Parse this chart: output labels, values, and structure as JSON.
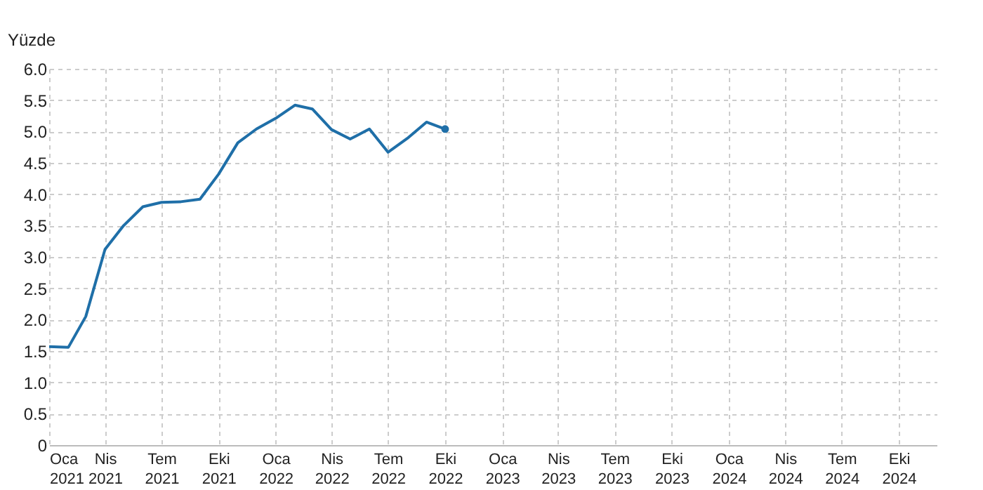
{
  "chart_data": {
    "type": "line",
    "ylabel": "Yüzde",
    "x": [
      "2021-01",
      "2021-02",
      "2021-03",
      "2021-04",
      "2021-05",
      "2021-06",
      "2021-07",
      "2021-08",
      "2021-09",
      "2021-10",
      "2021-11",
      "2021-12",
      "2022-01",
      "2022-02",
      "2022-03",
      "2022-04",
      "2022-05",
      "2022-06",
      "2022-07",
      "2022-08",
      "2022-09",
      "2022-10"
    ],
    "series": [
      {
        "color": "#1f6fa8",
        "values": [
          1.57,
          1.56,
          2.05,
          3.12,
          3.5,
          3.8,
          3.87,
          3.88,
          3.92,
          4.32,
          4.82,
          5.04,
          5.21,
          5.42,
          5.36,
          5.03,
          4.88,
          5.04,
          4.67,
          4.89,
          5.15,
          5.04
        ]
      },
      {
        "type": "scatter",
        "color": "#1f6fa8",
        "marker": "circle",
        "x": [
          "2022-10"
        ],
        "values": [
          5.04
        ]
      }
    ],
    "xlim": [
      "2021-01",
      "2024-12"
    ],
    "xticks": [
      {
        "value": "2021-01",
        "label": "Oca\n2021"
      },
      {
        "value": "2021-04",
        "label": "Nis\n2021"
      },
      {
        "value": "2021-07",
        "label": "Tem\n2021"
      },
      {
        "value": "2021-10",
        "label": "Eki\n2021"
      },
      {
        "value": "2022-01",
        "label": "Oca\n2022"
      },
      {
        "value": "2022-04",
        "label": "Nis\n2022"
      },
      {
        "value": "2022-07",
        "label": "Tem\n2022"
      },
      {
        "value": "2022-10",
        "label": "Eki\n2022"
      },
      {
        "value": "2023-01",
        "label": "Oca\n2023"
      },
      {
        "value": "2023-04",
        "label": "Nis\n2023"
      },
      {
        "value": "2023-07",
        "label": "Tem\n2023"
      },
      {
        "value": "2023-10",
        "label": "Eki\n2023"
      },
      {
        "value": "2024-01",
        "label": "Oca\n2024"
      },
      {
        "value": "2024-04",
        "label": "Nis\n2024"
      },
      {
        "value": "2024-07",
        "label": "Tem\n2024"
      },
      {
        "value": "2024-10",
        "label": "Eki\n2024"
      }
    ],
    "ylim": [
      0,
      6
    ],
    "yticks": [
      0,
      0.5,
      {
        "value": 1,
        "label": "1.0"
      },
      1.5,
      {
        "value": 2,
        "label": "2.0"
      },
      2.5,
      {
        "value": 3,
        "label": "3.0"
      },
      3.5,
      {
        "value": 4,
        "label": "4.0"
      },
      4.5,
      {
        "value": 5,
        "label": "5.0"
      },
      5.5,
      {
        "value": 6,
        "label": "6.0"
      }
    ],
    "grid": true,
    "line_style": "solid"
  }
}
